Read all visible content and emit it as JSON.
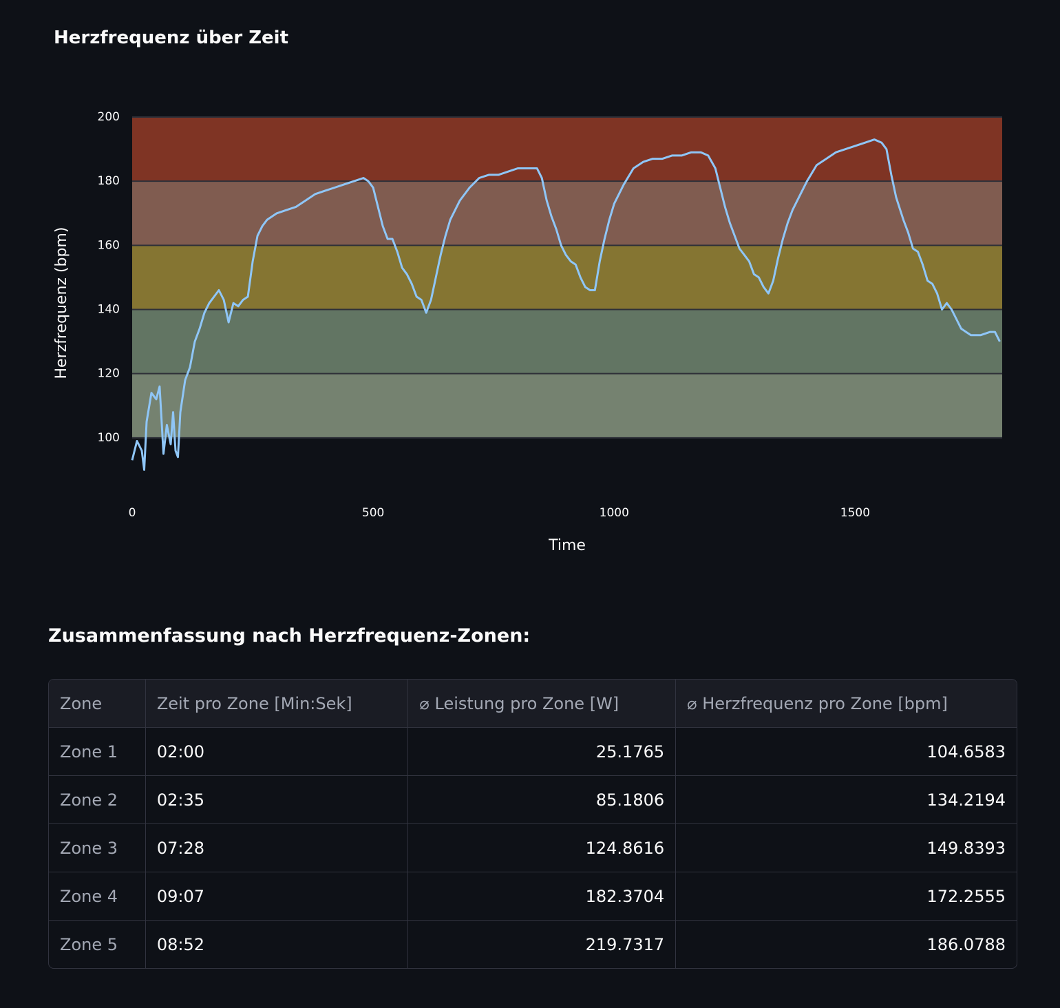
{
  "chart_data": {
    "type": "line",
    "title": "Herzfrequenz über Zeit",
    "x_label": "Time",
    "y_label": "Herzfrequenz (bpm)",
    "x": [
      0,
      10,
      20,
      25,
      30,
      40,
      50,
      57,
      62,
      65,
      72,
      80,
      85,
      90,
      95,
      100,
      110,
      120,
      130,
      140,
      150,
      160,
      170,
      180,
      190,
      200,
      210,
      220,
      230,
      240,
      250,
      260,
      270,
      280,
      300,
      320,
      340,
      360,
      380,
      400,
      420,
      440,
      460,
      480,
      490,
      500,
      510,
      520,
      530,
      540,
      550,
      560,
      570,
      580,
      590,
      600,
      610,
      620,
      630,
      640,
      650,
      660,
      670,
      680,
      700,
      720,
      740,
      760,
      780,
      800,
      820,
      840,
      850,
      860,
      870,
      880,
      890,
      900,
      910,
      920,
      930,
      940,
      950,
      960,
      970,
      980,
      990,
      1000,
      1020,
      1040,
      1060,
      1080,
      1100,
      1120,
      1140,
      1160,
      1180,
      1195,
      1210,
      1220,
      1230,
      1240,
      1250,
      1260,
      1270,
      1280,
      1290,
      1300,
      1310,
      1320,
      1330,
      1340,
      1350,
      1360,
      1370,
      1380,
      1400,
      1420,
      1440,
      1460,
      1480,
      1500,
      1520,
      1540,
      1555,
      1565,
      1575,
      1585,
      1600,
      1610,
      1620,
      1630,
      1640,
      1650,
      1660,
      1670,
      1680,
      1690,
      1700,
      1710,
      1720,
      1730,
      1740,
      1760,
      1780,
      1790,
      1800
    ],
    "values": [
      93,
      99,
      96,
      90,
      105,
      114,
      112,
      116,
      103,
      95,
      104,
      98,
      108,
      96,
      94,
      108,
      118,
      122,
      130,
      134,
      139,
      142,
      144,
      146,
      143,
      136,
      142,
      141,
      143,
      144,
      155,
      163,
      166,
      168,
      170,
      171,
      172,
      174,
      176,
      177,
      178,
      179,
      180,
      181,
      180,
      178,
      172,
      166,
      162,
      162,
      158,
      153,
      151,
      148,
      144,
      143,
      139,
      143,
      150,
      157,
      163,
      168,
      171,
      174,
      178,
      181,
      182,
      182,
      183,
      184,
      184,
      184,
      181,
      174,
      169,
      165,
      160,
      157,
      155,
      154,
      150,
      147,
      146,
      146,
      155,
      162,
      168,
      173,
      179,
      184,
      186,
      187,
      187,
      188,
      188,
      189,
      189,
      188,
      184,
      178,
      172,
      167,
      163,
      159,
      157,
      155,
      151,
      150,
      147,
      145,
      149,
      156,
      162,
      167,
      171,
      174,
      180,
      185,
      187,
      189,
      190,
      191,
      192,
      193,
      192,
      190,
      182,
      175,
      168,
      164,
      159,
      158,
      154,
      149,
      148,
      145,
      140,
      142,
      140,
      137,
      134,
      133,
      132,
      132,
      133,
      133,
      130
    ],
    "color": "#8fc6f7",
    "xlim": [
      0,
      1805
    ],
    "ylim": [
      80,
      200
    ],
    "xticks": [
      0,
      500,
      1000,
      1500
    ],
    "yticks": [
      100,
      120,
      140,
      160,
      180,
      200
    ],
    "zones": [
      {
        "from": 100,
        "to": 120,
        "color": "#758270"
      },
      {
        "from": 120,
        "to": 140,
        "color": "#627563"
      },
      {
        "from": 140,
        "to": 160,
        "color": "#857532"
      },
      {
        "from": 160,
        "to": 180,
        "color": "#805c50"
      },
      {
        "from": 180,
        "to": 200,
        "color": "#7f3424"
      }
    ]
  },
  "subheading": "Zusammenfassung nach Herzfrequenz-Zonen:",
  "table": {
    "columns": [
      "Zone",
      "Zeit pro Zone [Min:Sek]",
      "⌀ Leistung pro Zone [W]",
      "⌀ Herzfrequenz pro Zone [bpm]"
    ],
    "rows": [
      [
        "Zone 1",
        "02:00",
        "25.1765",
        "104.6583"
      ],
      [
        "Zone 2",
        "02:35",
        "85.1806",
        "134.2194"
      ],
      [
        "Zone 3",
        "07:28",
        "124.8616",
        "149.8393"
      ],
      [
        "Zone 4",
        "09:07",
        "182.3704",
        "172.2555"
      ],
      [
        "Zone 5",
        "08:52",
        "219.7317",
        "186.0788"
      ]
    ]
  }
}
